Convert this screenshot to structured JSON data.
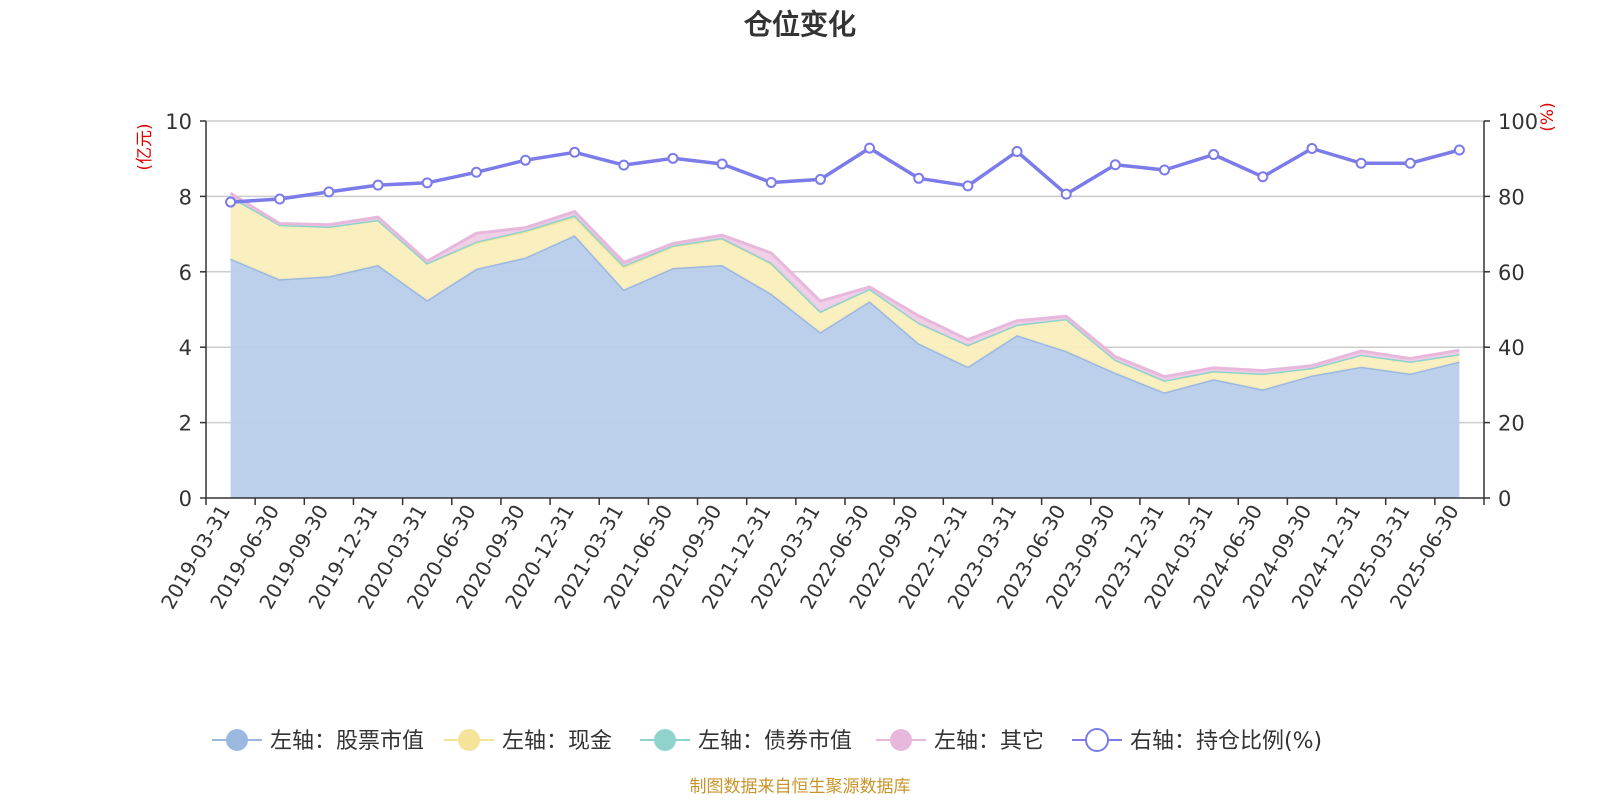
{
  "chart_data": {
    "type": "area",
    "title": "仓位变化",
    "left_unit": "(亿元)",
    "right_unit": "(%)",
    "categories": [
      "2019-03-31",
      "2019-06-30",
      "2019-09-30",
      "2019-12-31",
      "2020-03-31",
      "2020-06-30",
      "2020-09-30",
      "2020-12-31",
      "2021-03-31",
      "2021-06-30",
      "2021-09-30",
      "2021-12-31",
      "2022-03-31",
      "2022-06-30",
      "2022-09-30",
      "2022-12-31",
      "2023-03-31",
      "2023-06-30",
      "2023-09-30",
      "2023-12-31",
      "2024-03-31",
      "2024-06-30",
      "2024-09-30",
      "2024-12-31",
      "2025-03-31",
      "2025-06-30"
    ],
    "left_axis": {
      "min": 0,
      "max": 10,
      "ticks": [
        0,
        2,
        4,
        6,
        8,
        10
      ]
    },
    "right_axis": {
      "min": 0,
      "max": 100,
      "ticks": [
        0,
        20,
        40,
        60,
        80,
        100
      ]
    },
    "stacked": true,
    "series": [
      {
        "name": "左轴：股票市值",
        "color": "#9bb8e0",
        "fill": "#b8cdea",
        "values": [
          6.35,
          5.8,
          5.88,
          6.18,
          5.25,
          6.08,
          6.38,
          6.97,
          5.53,
          6.1,
          6.18,
          5.42,
          4.4,
          5.22,
          4.1,
          3.48,
          4.32,
          3.9,
          3.32,
          2.8,
          3.15,
          2.88,
          3.25,
          3.48,
          3.3,
          3.62
        ]
      },
      {
        "name": "左轴：现金",
        "color": "#f5e39a",
        "fill": "#faeebc",
        "values": [
          1.65,
          1.45,
          1.32,
          1.2,
          0.98,
          0.7,
          0.69,
          0.48,
          0.6,
          0.58,
          0.7,
          0.8,
          0.55,
          0.33,
          0.55,
          0.58,
          0.28,
          0.85,
          0.35,
          0.32,
          0.22,
          0.42,
          0.2,
          0.32,
          0.32,
          0.2
        ]
      },
      {
        "name": "左轴：债券市值",
        "color": "#8fd3cc",
        "fill": "#9fd9d2",
        "values": [
          0,
          0,
          0,
          0,
          0,
          0.02,
          0.03,
          0.05,
          0.04,
          0.02,
          0.02,
          0.02,
          0,
          0,
          0,
          0,
          0,
          0,
          0,
          0,
          0,
          0,
          0,
          0,
          0,
          0
        ]
      },
      {
        "name": "左轴：其它",
        "color": "#e8b8dc",
        "fill": "#f0cce6",
        "values": [
          0.08,
          0.03,
          0.05,
          0.07,
          0.05,
          0.22,
          0.07,
          0.1,
          0.08,
          0.05,
          0.07,
          0.26,
          0.27,
          0.05,
          0.18,
          0.14,
          0.1,
          0.07,
          0.08,
          0.1,
          0.08,
          0.08,
          0.06,
          0.1,
          0.08,
          0.1
        ]
      },
      {
        "name": "右轴：持仓比例(%)",
        "color": "#7b7bea",
        "values": [
          78.5,
          79.3,
          81.2,
          83,
          83.6,
          86.4,
          89.6,
          91.7,
          88.3,
          90.1,
          88.6,
          83.7,
          84.5,
          92.8,
          84.8,
          82.8,
          91.9,
          80.6,
          88.4,
          87,
          91.1,
          85.2,
          92.7,
          88.8,
          88.8,
          92.3
        ]
      }
    ],
    "legend_position": "bottom",
    "grid": true,
    "source": "制图数据来自恒生聚源数据库"
  }
}
